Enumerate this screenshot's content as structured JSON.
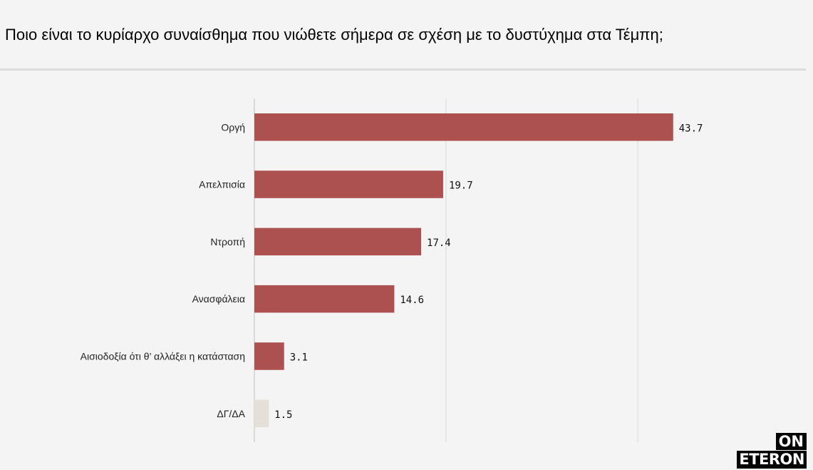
{
  "title": "Ποιο είναι το κυρίαρχο συναίσθημα που νιώθετε σήμερα σε σχέση με το δυστύχημα στα Τέμπη;",
  "logo": {
    "line1": "ON",
    "line2": "ETERON"
  },
  "chart_data": {
    "type": "bar",
    "orientation": "horizontal",
    "title": "Ποιο είναι το κυρίαρχο συναίσθημα που νιώθετε σήμερα σε σχέση με το δυστύχημα στα Τέμπη;",
    "categories": [
      "Οργή",
      "Απελπισία",
      "Ντροπή",
      "Ανασφάλεια",
      "Αισιοδοξία ότι θ’ αλλάξει η κατάσταση",
      "ΔΓ/ΔΑ"
    ],
    "values": [
      43.7,
      19.7,
      17.4,
      14.6,
      3.1,
      1.5
    ],
    "value_labels": [
      "43.7",
      "19.7",
      "17.4",
      "14.6",
      "3.1",
      "1.5"
    ],
    "colors": [
      "#ad5150",
      "#ad5150",
      "#ad5150",
      "#ad5150",
      "#ad5150",
      "#e4dfd8"
    ],
    "xlim": [
      0,
      50
    ],
    "gridlines_at": [
      0,
      20,
      40
    ],
    "grid": true,
    "legend": "none",
    "xlabel": "",
    "ylabel": ""
  }
}
